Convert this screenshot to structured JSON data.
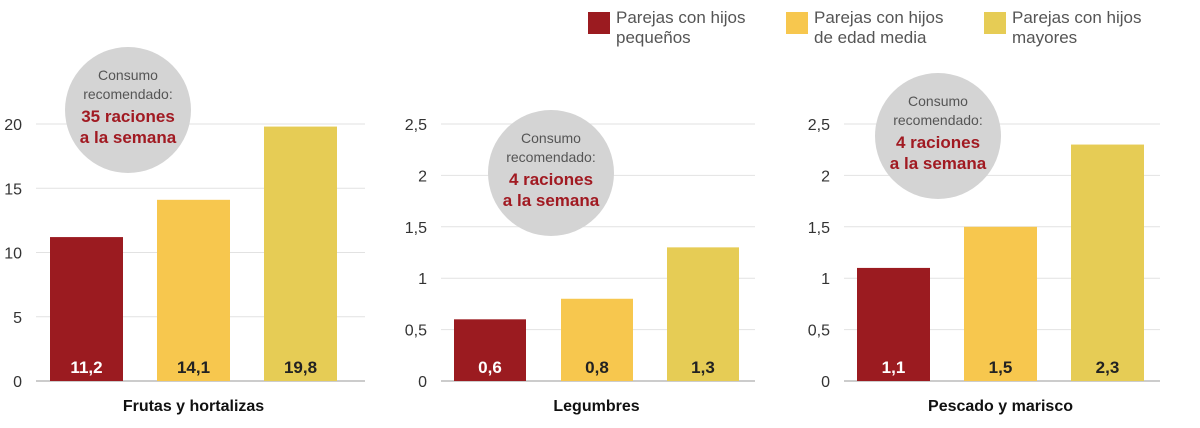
{
  "legend": [
    {
      "line1": "Parejas con hijos",
      "line2": "pequeños",
      "color": "#9b1b20"
    },
    {
      "line1": "Parejas con hijos",
      "line2": "de edad media",
      "color": "#f7c74e"
    },
    {
      "line1": "Parejas con hijos",
      "line2": "mayores",
      "color": "#e6cc55"
    }
  ],
  "chart_data": [
    {
      "type": "bar",
      "xlabel": "Frutas y hortalizas",
      "ylim": [
        0,
        20
      ],
      "yticks": [
        "0",
        "5",
        "10",
        "15",
        "20"
      ],
      "series_colors": [
        "#9b1b20",
        "#f7c74e",
        "#e6cc55"
      ],
      "values": [
        11.2,
        14.1,
        19.8
      ],
      "value_labels": [
        "11,2",
        "14,1",
        "19,8"
      ],
      "recommendation": {
        "line1": "Consumo",
        "line2": "recomendado:",
        "line3": "35 raciones",
        "line4": "a la semana"
      }
    },
    {
      "type": "bar",
      "xlabel": "Legumbres",
      "ylim": [
        0,
        2.5
      ],
      "yticks": [
        "0",
        "0,5",
        "1",
        "1,5",
        "2",
        "2,5"
      ],
      "series_colors": [
        "#9b1b20",
        "#f7c74e",
        "#e6cc55"
      ],
      "values": [
        0.6,
        0.8,
        1.3
      ],
      "value_labels": [
        "0,6",
        "0,8",
        "1,3"
      ],
      "recommendation": {
        "line1": "Consumo",
        "line2": "recomendado:",
        "line3": "4 raciones",
        "line4": "a la semana"
      }
    },
    {
      "type": "bar",
      "xlabel": "Pescado y marisco",
      "ylim": [
        0,
        2.5
      ],
      "yticks": [
        "0",
        "0,5",
        "1",
        "1,5",
        "2",
        "2,5"
      ],
      "series_colors": [
        "#9b1b20",
        "#f7c74e",
        "#e6cc55"
      ],
      "values": [
        1.1,
        1.5,
        2.3
      ],
      "value_labels": [
        "1,1",
        "1,5",
        "2,3"
      ],
      "recommendation": {
        "line1": "Consumo",
        "line2": "recomendado:",
        "line3": "4 raciones",
        "line4": "a la semana"
      }
    }
  ]
}
